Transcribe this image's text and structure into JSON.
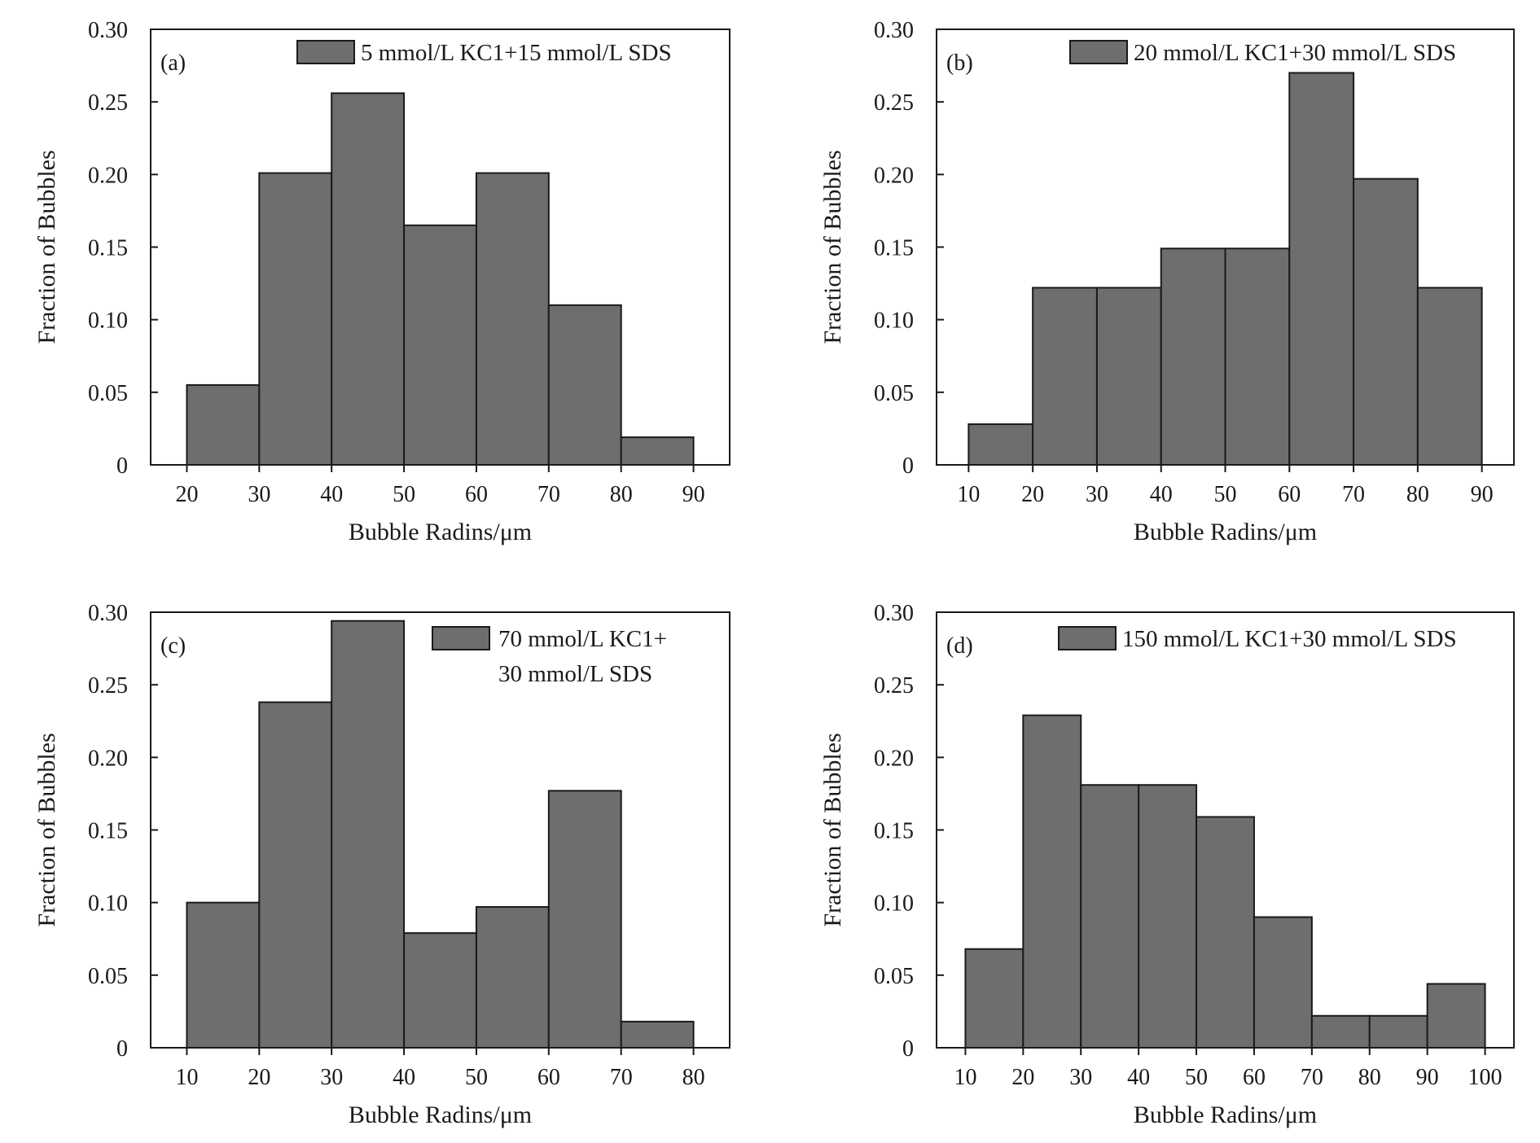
{
  "colors": {
    "bar_fill": "#6e6e6e",
    "bar_stroke": "#1a1a1a",
    "axis": "#1a1a1a",
    "background": "#ffffff"
  },
  "chart_data": [
    {
      "type": "bar",
      "panel": "(a)",
      "bin_edges": [
        20,
        30,
        40,
        50,
        60,
        70,
        80,
        90
      ],
      "values": [
        0.055,
        0.201,
        0.256,
        0.165,
        0.201,
        0.11,
        0.019
      ],
      "xticks": [
        "20",
        "30",
        "40",
        "50",
        "60",
        "70",
        "80",
        "90"
      ],
      "xlim": [
        15,
        95
      ],
      "yticks": [
        "0",
        "0.05",
        "0.10",
        "0.15",
        "0.20",
        "0.25",
        "0.30"
      ],
      "ylim": [
        0,
        0.3
      ],
      "xlabel": "Bubble Radins/μm",
      "ylabel": "Fraction of Bubbles",
      "legend": [
        "5 mmol/L KC1+15 mmol/L SDS"
      ],
      "legend_position": "top-right",
      "grid": false
    },
    {
      "type": "bar",
      "panel": "(b)",
      "bin_edges": [
        10,
        20,
        30,
        40,
        50,
        60,
        70,
        80,
        90
      ],
      "values": [
        0.028,
        0.122,
        0.122,
        0.149,
        0.149,
        0.27,
        0.197,
        0.122
      ],
      "xticks": [
        "10",
        "20",
        "30",
        "40",
        "50",
        "60",
        "70",
        "80",
        "90"
      ],
      "xlim": [
        5,
        95
      ],
      "yticks": [
        "0",
        "0.05",
        "0.10",
        "0.15",
        "0.20",
        "0.25",
        "0.30"
      ],
      "ylim": [
        0,
        0.3
      ],
      "xlabel": "Bubble Radins/μm",
      "ylabel": "Fraction of Bubbles",
      "legend": [
        "20 mmol/L KC1+30 mmol/L SDS"
      ],
      "legend_position": "top-right",
      "grid": false
    },
    {
      "type": "bar",
      "panel": "(c)",
      "bin_edges": [
        10,
        20,
        30,
        40,
        50,
        60,
        70,
        80
      ],
      "values": [
        0.1,
        0.238,
        0.294,
        0.079,
        0.097,
        0.177,
        0.018
      ],
      "xticks": [
        "10",
        "20",
        "30",
        "40",
        "50",
        "60",
        "70",
        "80"
      ],
      "xlim": [
        5,
        85
      ],
      "yticks": [
        "0",
        "0.05",
        "0.10",
        "0.15",
        "0.20",
        "0.25",
        "0.30"
      ],
      "ylim": [
        0,
        0.3
      ],
      "xlabel": "Bubble Radins/μm",
      "ylabel": "Fraction of Bubbles",
      "legend": [
        "70 mmol/L KC1+",
        "30 mmol/L SDS"
      ],
      "legend_position": "top-right",
      "grid": false
    },
    {
      "type": "bar",
      "panel": "(d)",
      "bin_edges": [
        10,
        20,
        30,
        40,
        50,
        60,
        70,
        80,
        90,
        100
      ],
      "values": [
        0.068,
        0.229,
        0.181,
        0.181,
        0.159,
        0.09,
        0.022,
        0.022,
        0.044
      ],
      "xticks": [
        "10",
        "20",
        "30",
        "40",
        "50",
        "60",
        "70",
        "80",
        "90",
        "100"
      ],
      "xlim": [
        5,
        105
      ],
      "yticks": [
        "0",
        "0.05",
        "0.10",
        "0.15",
        "0.20",
        "0.25",
        "0.30"
      ],
      "ylim": [
        0,
        0.3
      ],
      "xlabel": "Bubble Radins/μm",
      "ylabel": "Fraction of Bubbles",
      "legend": [
        "150 mmol/L KC1+30 mmol/L SDS"
      ],
      "legend_position": "top-right",
      "grid": false
    }
  ]
}
